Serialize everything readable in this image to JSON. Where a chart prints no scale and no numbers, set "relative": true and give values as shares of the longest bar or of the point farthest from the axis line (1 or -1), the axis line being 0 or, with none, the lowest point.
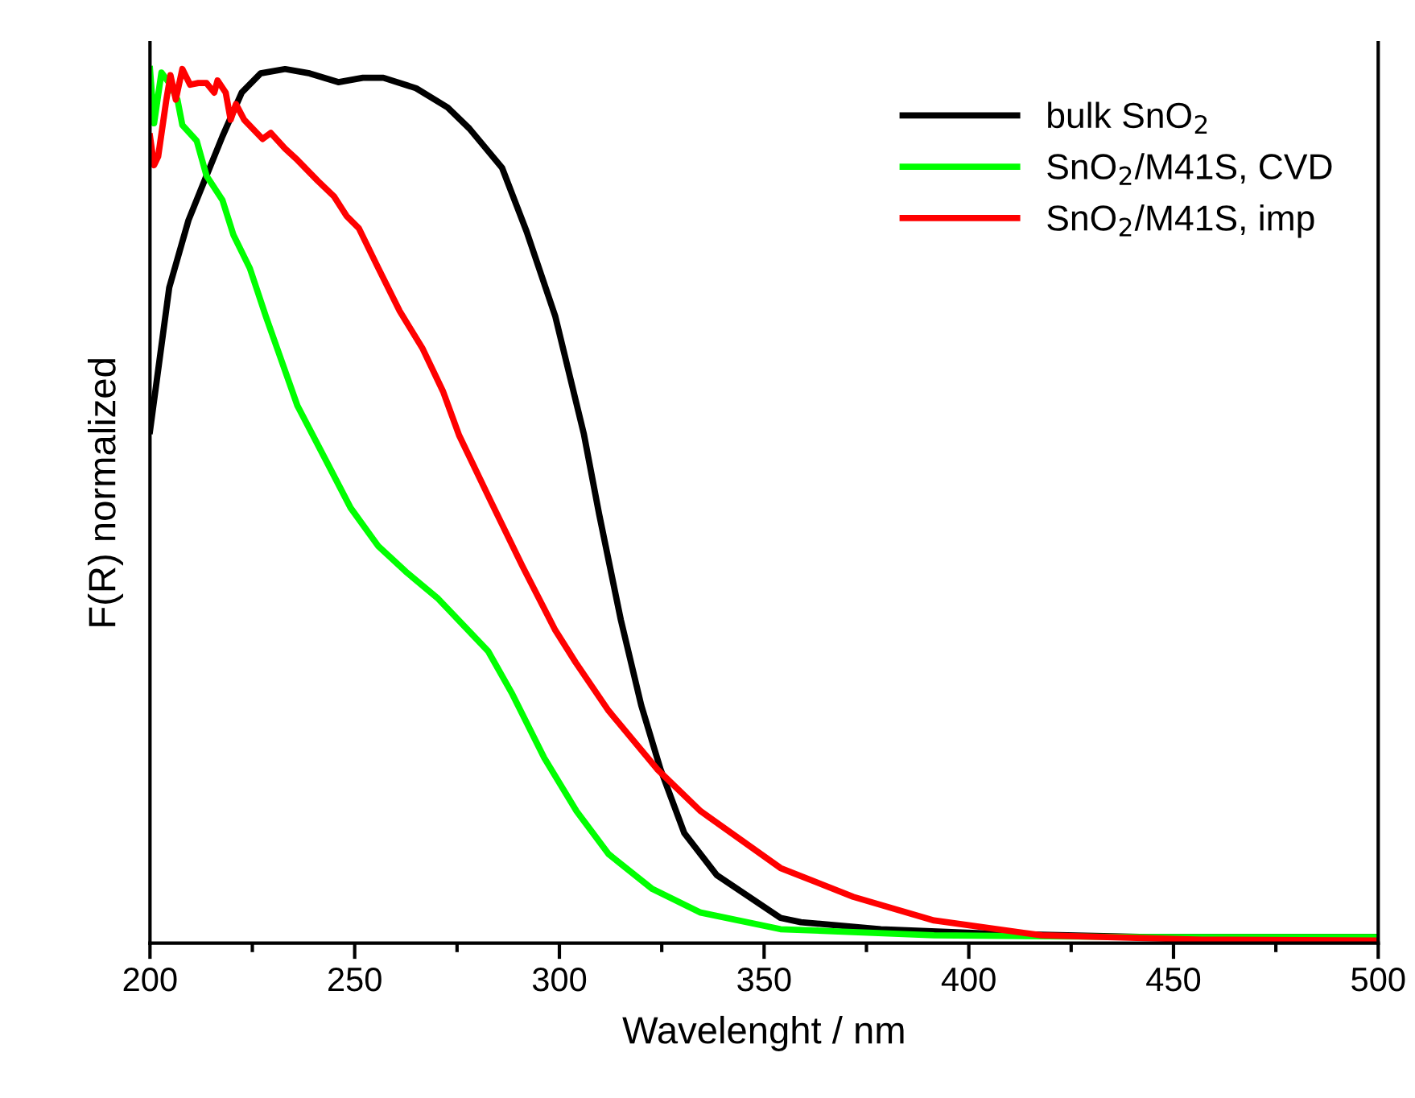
{
  "chart_data": {
    "type": "line",
    "relative": true,
    "xlabel": "Wavelenght / nm",
    "ylabel": "F(R) normalized",
    "xlim": [
      200,
      500
    ],
    "xticks": [
      200,
      {
        "value": 225,
        "label": null
      },
      250,
      {
        "value": 275,
        "label": null
      },
      300,
      {
        "value": 325,
        "label": null
      },
      350,
      {
        "value": 375,
        "label": null
      },
      400,
      {
        "value": 425,
        "label": null
      },
      450,
      {
        "value": 475,
        "label": null
      },
      500
    ],
    "legend": "top right",
    "grid": false,
    "marker": "none",
    "line_style": "solid",
    "series": [
      {
        "name": "bulk SnO$_{2}$",
        "color": "#000000",
        "x": [
          200,
          204.7,
          209.4,
          213.8,
          217.7,
          222.4,
          227,
          233,
          239,
          246,
          252,
          257,
          265,
          272.7,
          278,
          286,
          292,
          299,
          306,
          309.7,
          315,
          320,
          324.7,
          330.5,
          338.4,
          354,
          359,
          378.5,
          404.5,
          444,
          499
        ],
        "values": [
          0.586,
          0.75,
          0.827,
          0.878,
          0.923,
          0.973,
          0.995,
          1.0,
          0.995,
          0.985,
          0.99,
          0.99,
          0.978,
          0.956,
          0.932,
          0.887,
          0.814,
          0.717,
          0.582,
          0.491,
          0.37,
          0.272,
          0.199,
          0.126,
          0.078,
          0.029,
          0.024,
          0.016,
          0.011,
          0.007,
          0.007
        ]
      },
      {
        "name": "SnO$_{2}$/M41S, CVD",
        "color": "#00ff00",
        "x": [
          200,
          201,
          202.8,
          204.7,
          206.7,
          207.9,
          211.4,
          213.8,
          217.7,
          220.4,
          224.4,
          228.3,
          232,
          236,
          242.9,
          249,
          255.8,
          262.5,
          270.4,
          276.7,
          282.6,
          288.5,
          296.3,
          304.2,
          312,
          322.7,
          334.5,
          354,
          391.5,
          444,
          499
        ],
        "values": [
          1.0,
          0.938,
          0.996,
          0.984,
          0.965,
          0.936,
          0.918,
          0.878,
          0.85,
          0.81,
          0.772,
          0.717,
          0.668,
          0.615,
          0.553,
          0.498,
          0.454,
          0.425,
          0.394,
          0.363,
          0.334,
          0.285,
          0.212,
          0.151,
          0.102,
          0.062,
          0.035,
          0.016,
          0.009,
          0.007,
          0.007
        ]
      },
      {
        "name": "SnO$_{2}$/M41S, imp",
        "color": "#ff0000",
        "x": [
          200,
          201,
          202,
          204,
          205,
          206.3,
          207.9,
          209.8,
          211.8,
          213.8,
          215.7,
          216.5,
          218.5,
          219.7,
          221,
          223,
          227.5,
          229.5,
          233,
          236,
          241,
          245,
          248,
          251,
          255.8,
          261,
          266.5,
          271.6,
          275.5,
          283.4,
          291,
          299,
          304,
          312,
          323.9,
          334.5,
          354,
          371.8,
          391.5,
          417.8,
          457,
          499
        ],
        "values": [
          0.923,
          0.89,
          0.9,
          0.965,
          0.993,
          0.965,
          1.0,
          0.982,
          0.984,
          0.984,
          0.973,
          0.987,
          0.973,
          0.942,
          0.96,
          0.942,
          0.92,
          0.927,
          0.909,
          0.896,
          0.872,
          0.854,
          0.832,
          0.818,
          0.772,
          0.723,
          0.681,
          0.631,
          0.581,
          0.504,
          0.431,
          0.358,
          0.321,
          0.266,
          0.199,
          0.151,
          0.086,
          0.053,
          0.026,
          0.009,
          0.004,
          0.003
        ]
      }
    ]
  }
}
